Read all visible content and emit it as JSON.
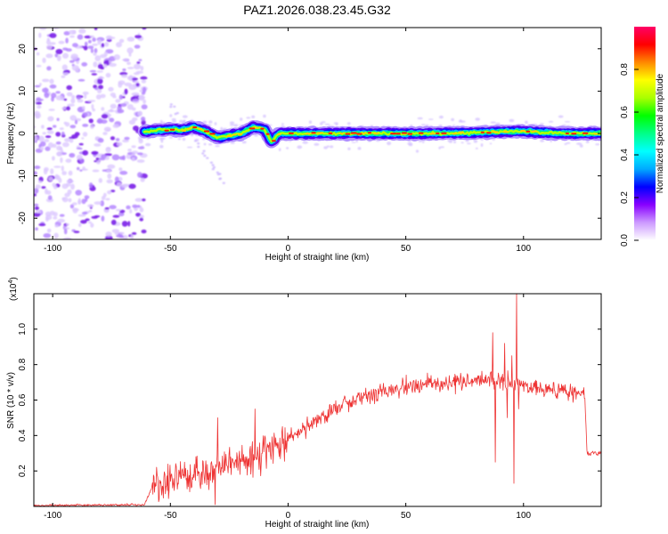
{
  "figure": {
    "title": "PAZ1.2026.038.23.45.G32"
  },
  "chart_data": [
    {
      "type": "heatmap",
      "name": "spectrogram",
      "xlabel": "Height of straight line (km)",
      "ylabel": "Frequency (Hz)",
      "xlim": [
        -108,
        133
      ],
      "ylim": [
        -25,
        25
      ],
      "x_ticks": [
        -100,
        -50,
        0,
        50,
        100
      ],
      "y_ticks": [
        -20,
        -10,
        0,
        10,
        20
      ],
      "x_tick_labels": [
        "-100",
        "-50",
        "0",
        "50",
        "100"
      ],
      "y_tick_labels": [
        "-20",
        "-10",
        "0",
        "10",
        "20"
      ],
      "ridge": [
        {
          "x": -60,
          "freq": 0.5
        },
        {
          "x": -55,
          "freq": 0.8
        },
        {
          "x": -50,
          "freq": 1.0
        },
        {
          "x": -45,
          "freq": 0.8
        },
        {
          "x": -40,
          "freq": 1.5
        },
        {
          "x": -35,
          "freq": 0.5
        },
        {
          "x": -30,
          "freq": -1.0
        },
        {
          "x": -25,
          "freq": -0.5
        },
        {
          "x": -20,
          "freq": 0.0
        },
        {
          "x": -15,
          "freq": 1.5
        },
        {
          "x": -10,
          "freq": 1.0
        },
        {
          "x": -7,
          "freq": -2.0
        },
        {
          "x": -4,
          "freq": 0.0
        },
        {
          "x": 0,
          "freq": 0.0
        },
        {
          "x": 20,
          "freq": 0.0
        },
        {
          "x": 40,
          "freq": 0.0
        },
        {
          "x": 60,
          "freq": 0.0
        },
        {
          "x": 80,
          "freq": 0.2
        },
        {
          "x": 95,
          "freq": 0.5
        },
        {
          "x": 100,
          "freq": 0.5
        },
        {
          "x": 110,
          "freq": 0.2
        },
        {
          "x": 120,
          "freq": 0.0
        },
        {
          "x": 133,
          "freq": 0.0
        }
      ],
      "noise_region": [
        -108,
        -61
      ],
      "colorbar": {
        "label": "Normalized spectral amplitude",
        "range": [
          0,
          1
        ],
        "ticks": [
          0.0,
          0.2,
          0.4,
          0.6,
          0.8
        ],
        "tick_labels": [
          "0.0",
          "0.2",
          "0.4",
          "0.6",
          "0.8"
        ],
        "colors": [
          "#ffffff",
          "#cc99ff",
          "#8800ff",
          "#0000ff",
          "#00aaff",
          "#00ffff",
          "#00ff88",
          "#00ff00",
          "#aaff00",
          "#ffff00",
          "#ff8800",
          "#ff0000",
          "#ff0066"
        ]
      }
    },
    {
      "type": "line",
      "name": "snr",
      "xlabel": "Height of straight line (km)",
      "ylabel": "SNR (10 * v/v)",
      "scale_label": "(x10",
      "scale_exponent": "4",
      "scale_close": ")",
      "xlim": [
        -108,
        133
      ],
      "ylim": [
        0,
        1.2
      ],
      "x_ticks": [
        -100,
        -50,
        0,
        50,
        100
      ],
      "y_ticks": [
        0.2,
        0.4,
        0.6,
        0.8,
        1.0
      ],
      "x_tick_labels": [
        "-100",
        "-50",
        "0",
        "50",
        "100"
      ],
      "y_tick_labels": [
        "0.2",
        "0.4",
        "0.6",
        "0.8",
        "1.0"
      ],
      "line_color": "#ee3333",
      "trend": [
        {
          "x": -108,
          "y": 0.005
        },
        {
          "x": -61,
          "y": 0.01
        },
        {
          "x": -58,
          "y": 0.1
        },
        {
          "x": -50,
          "y": 0.15
        },
        {
          "x": -40,
          "y": 0.18
        },
        {
          "x": -30,
          "y": 0.22
        },
        {
          "x": -20,
          "y": 0.26
        },
        {
          "x": -10,
          "y": 0.3
        },
        {
          "x": 0,
          "y": 0.38
        },
        {
          "x": 10,
          "y": 0.47
        },
        {
          "x": 20,
          "y": 0.55
        },
        {
          "x": 30,
          "y": 0.62
        },
        {
          "x": 40,
          "y": 0.65
        },
        {
          "x": 50,
          "y": 0.67
        },
        {
          "x": 60,
          "y": 0.69
        },
        {
          "x": 70,
          "y": 0.7
        },
        {
          "x": 80,
          "y": 0.71
        },
        {
          "x": 90,
          "y": 0.7
        },
        {
          "x": 100,
          "y": 0.68
        },
        {
          "x": 110,
          "y": 0.66
        },
        {
          "x": 120,
          "y": 0.64
        },
        {
          "x": 126,
          "y": 0.63
        },
        {
          "x": 127,
          "y": 0.3
        },
        {
          "x": 133,
          "y": 0.3
        }
      ],
      "notable_points": [
        {
          "x": -31,
          "y": 0.01
        },
        {
          "x": -30,
          "y": 0.5
        },
        {
          "x": -14,
          "y": 0.55
        },
        {
          "x": 87,
          "y": 0.98
        },
        {
          "x": 88,
          "y": 0.25
        },
        {
          "x": 92,
          "y": 0.92
        },
        {
          "x": 93,
          "y": 0.5
        },
        {
          "x": 95,
          "y": 0.85
        },
        {
          "x": 96,
          "y": 0.13
        },
        {
          "x": 97,
          "y": 1.2
        },
        {
          "x": 98,
          "y": 0.55
        }
      ]
    }
  ]
}
